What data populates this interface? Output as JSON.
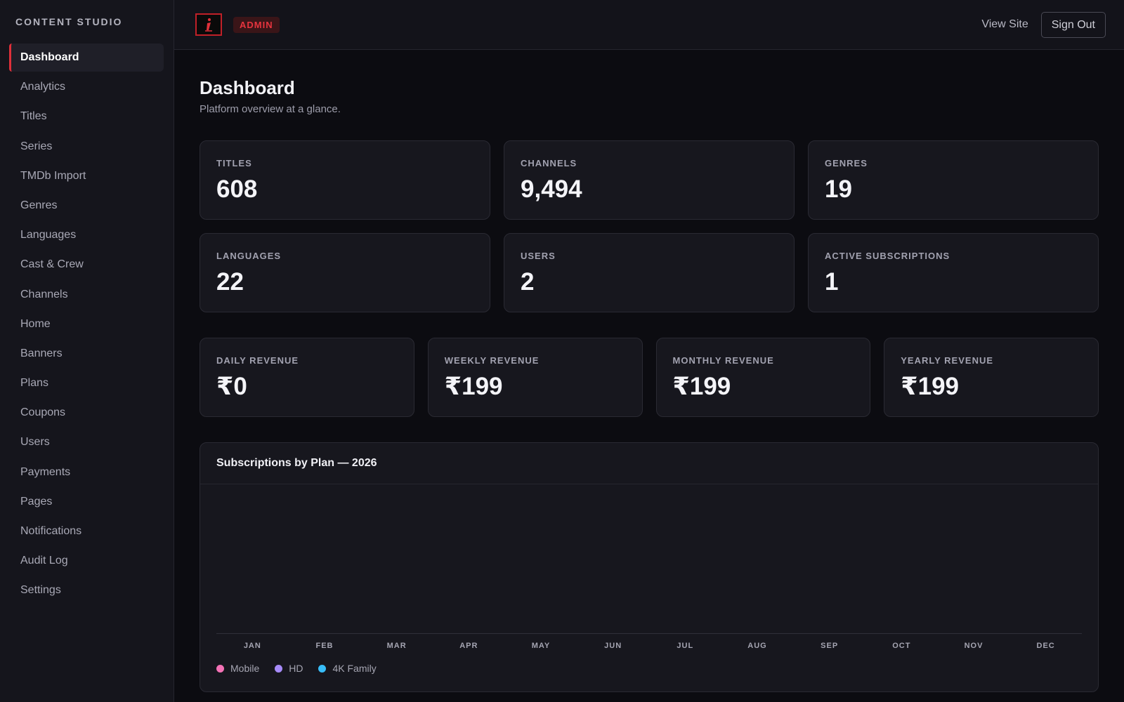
{
  "sidebar": {
    "brand": "CONTENT STUDIO",
    "items": [
      {
        "label": "Dashboard",
        "active": true
      },
      {
        "label": "Analytics"
      },
      {
        "label": "Titles"
      },
      {
        "label": "Series"
      },
      {
        "label": "TMDb Import"
      },
      {
        "label": "Genres"
      },
      {
        "label": "Languages"
      },
      {
        "label": "Cast & Crew"
      },
      {
        "label": "Channels"
      },
      {
        "label": "Home"
      },
      {
        "label": "Banners"
      },
      {
        "label": "Plans"
      },
      {
        "label": "Coupons"
      },
      {
        "label": "Users"
      },
      {
        "label": "Payments"
      },
      {
        "label": "Pages"
      },
      {
        "label": "Notifications"
      },
      {
        "label": "Audit Log"
      },
      {
        "label": "Settings"
      }
    ]
  },
  "topbar": {
    "logo_icon": "brand-logo-icon",
    "badge": "ADMIN",
    "view_site": "View Site",
    "sign_out": "Sign Out"
  },
  "page": {
    "title": "Dashboard",
    "subtitle": "Platform overview at a glance."
  },
  "stats": [
    {
      "label": "TITLES",
      "value": "608"
    },
    {
      "label": "CHANNELS",
      "value": "9,494"
    },
    {
      "label": "GENRES",
      "value": "19"
    },
    {
      "label": "LANGUAGES",
      "value": "22"
    },
    {
      "label": "USERS",
      "value": "2"
    },
    {
      "label": "ACTIVE SUBSCRIPTIONS",
      "value": "1"
    }
  ],
  "revenue": [
    {
      "label": "DAILY REVENUE",
      "value": "₹0"
    },
    {
      "label": "WEEKLY REVENUE",
      "value": "₹199"
    },
    {
      "label": "MONTHLY REVENUE",
      "value": "₹199"
    },
    {
      "label": "YEARLY REVENUE",
      "value": "₹199"
    }
  ],
  "chart_data": {
    "type": "bar",
    "title": "Subscriptions by Plan — 2026",
    "categories": [
      "JAN",
      "FEB",
      "MAR",
      "APR",
      "MAY",
      "JUN",
      "JUL",
      "AUG",
      "SEP",
      "OCT",
      "NOV",
      "DEC"
    ],
    "series": [
      {
        "name": "Mobile",
        "color": "#f472b6",
        "values": [
          0,
          0,
          0,
          0,
          0,
          0,
          0,
          0,
          0,
          0,
          0,
          0
        ]
      },
      {
        "name": "HD",
        "color": "#a78bfa",
        "values": [
          0,
          0,
          0,
          0,
          0,
          0,
          0,
          0,
          0,
          0,
          0,
          0
        ]
      },
      {
        "name": "4K Family",
        "color": "#38bdf8",
        "values": [
          0,
          0,
          0,
          0,
          0,
          0,
          0,
          0,
          0,
          0,
          0,
          0
        ]
      }
    ],
    "legend": "bottom-left",
    "grid": false
  },
  "colors": {
    "accent": "#e0303a",
    "background": "#0c0c11",
    "card": "#17171e"
  }
}
